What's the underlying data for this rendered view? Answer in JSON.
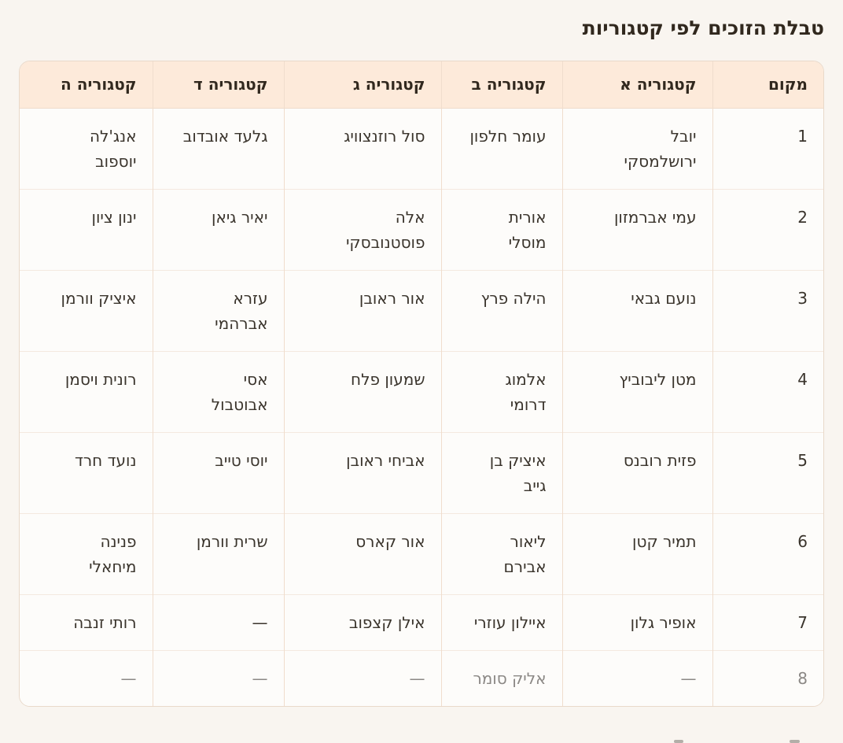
{
  "page": {
    "title": "טבלת הזוכים לפי קטגוריות"
  },
  "colors": {
    "page_bg": "#f9f5f0",
    "header_bg": "#fdeada",
    "cell_bg": "#fdfcfa",
    "outer_border": "#e9d9ca",
    "column_border": "#f0ddcd",
    "row_border": "#f4e9df",
    "title_text": "#31281e",
    "body_text": "#3a342c",
    "muted_text": "#8b8885"
  },
  "table": {
    "columns": [
      {
        "key": "place",
        "label": "מקום"
      },
      {
        "key": "a",
        "label": "קטגוריה א"
      },
      {
        "key": "b",
        "label": "קטגוריה ב"
      },
      {
        "key": "c",
        "label": "קטגוריה ג"
      },
      {
        "key": "d",
        "label": "קטגוריה ד"
      },
      {
        "key": "e",
        "label": "קטגוריה ה"
      }
    ],
    "rows": [
      {
        "place": "1",
        "a": "יובל\nירושלמסקי",
        "b": "עומר חלפון",
        "c": "סול רוזנצוויג",
        "d": "גלעד אובדוב",
        "e": "אנג'לה\nיוספוב",
        "muted": false
      },
      {
        "place": "2",
        "a": "עמי אברמזון",
        "b": "אורית\nמוסלי",
        "c": "אלה\nפוסטנובסקי",
        "d": "יאיר גיאן",
        "e": "ינון ציון",
        "muted": false
      },
      {
        "place": "3",
        "a": "נועם גבאי",
        "b": "הילה פרץ",
        "c": "אור ראובן",
        "d": "עזרא\nאברהמי",
        "e": "איציק וורמן",
        "muted": false
      },
      {
        "place": "4",
        "a": "מטן ליבוביץ",
        "b": "אלמוג\nדרומי",
        "c": "שמעון פלח",
        "d": "אסי\nאבוטבול",
        "e": "רונית ויסמן",
        "muted": false
      },
      {
        "place": "5",
        "a": "פזית רובנס",
        "b": "איציק בן\nגייב",
        "c": "אביחי ראובן",
        "d": "יוסי טייב",
        "e": "נועד חרד",
        "muted": false
      },
      {
        "place": "6",
        "a": "תמיר קטן",
        "b": "ליאור\nאבירם",
        "c": "אור קארס",
        "d": "שרית וורמן",
        "e": "פנינה\nמיחאלי",
        "muted": false
      },
      {
        "place": "7",
        "a": "אופיר גלון",
        "b": "איילון עוזרי",
        "c": "אילן קצפוב",
        "d": "—",
        "e": "רותי זנבה",
        "muted": false
      },
      {
        "place": "8",
        "a": "—",
        "b": "אליק סומר",
        "c": "—",
        "d": "—",
        "e": "—",
        "muted": true
      }
    ]
  }
}
